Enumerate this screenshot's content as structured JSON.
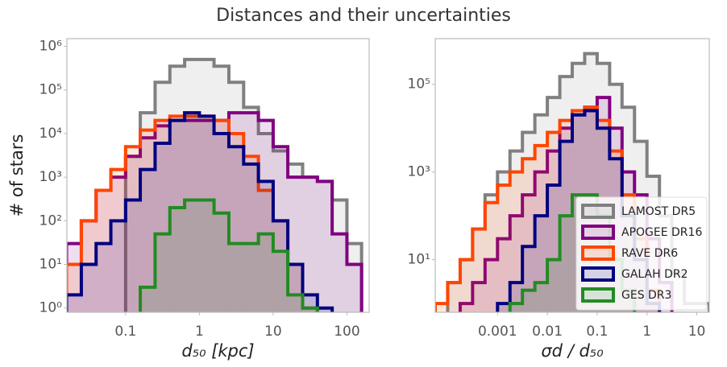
{
  "title": "Distances and their uncertainties",
  "chart_data": [
    {
      "type": "histogram",
      "xlabel": "d₅₀ [kpc]",
      "ylabel": "# of stars",
      "xlog": true,
      "ylog": true,
      "xlim": [
        0.016,
        200
      ],
      "ylim": [
        0.8,
        1500000
      ],
      "xticks": [
        0.1,
        1,
        10,
        100
      ],
      "yticks": [
        {
          "value": 1,
          "label": "10⁰"
        },
        {
          "value": 10,
          "label": "10¹"
        },
        {
          "value": 100,
          "label": "10²"
        },
        {
          "value": 1000,
          "label": "10³"
        },
        {
          "value": 10000,
          "label": "10⁴"
        },
        {
          "value": 100000,
          "label": "10⁵"
        },
        {
          "value": 1000000,
          "label": "10⁶"
        }
      ],
      "bins": [
        0.0158,
        0.0251,
        0.0398,
        0.0631,
        0.1,
        0.158,
        0.251,
        0.398,
        0.631,
        1,
        1.58,
        2.51,
        3.98,
        6.31,
        10,
        15.8,
        25.1,
        39.8,
        63.1,
        100,
        158
      ],
      "series": [
        {
          "name": "LAMOST DR5",
          "color": "#808080",
          "values": [
            null,
            null,
            null,
            null,
            3000,
            30000,
            150000,
            350000,
            500000,
            500000,
            350000,
            150000,
            40000,
            10000,
            4000,
            2000,
            1000,
            800,
            300,
            30
          ]
        },
        {
          "name": "APOGEE DR16",
          "color": "#800080",
          "values": [
            30,
            100,
            500,
            1000,
            3000,
            8000,
            15000,
            20000,
            20000,
            20000,
            20000,
            30000,
            30000,
            20000,
            5000,
            1000,
            1000,
            800,
            50,
            10
          ]
        },
        {
          "name": "RAVE DR6",
          "color": "#ff4500",
          "values": [
            10,
            100,
            500,
            1500,
            5000,
            12000,
            20000,
            25000,
            25000,
            25000,
            20000,
            10000,
            3000,
            500,
            100,
            10,
            1,
            null,
            null,
            null
          ]
        },
        {
          "name": "GALAH DR2",
          "color": "#000080",
          "values": [
            2,
            10,
            30,
            100,
            300,
            1500,
            6000,
            20000,
            30000,
            25000,
            10000,
            5000,
            2000,
            800,
            100,
            10,
            2,
            1,
            null,
            null
          ]
        },
        {
          "name": "GES DR3",
          "color": "#228b22",
          "values": [
            null,
            null,
            null,
            null,
            null,
            3,
            50,
            200,
            300,
            300,
            150,
            30,
            30,
            50,
            20,
            2,
            1,
            null,
            null,
            null
          ]
        }
      ]
    },
    {
      "type": "histogram",
      "xlabel": "σd / d₅₀",
      "xlog": true,
      "ylog": true,
      "xlim": [
        5.62e-05,
        17.8
      ],
      "ylim": [
        0.63,
        1100000
      ],
      "xticks": [
        0.001,
        0.01,
        0.1,
        1,
        10
      ],
      "yticks": [
        {
          "value": 10,
          "label": "10¹"
        },
        {
          "value": 1000,
          "label": "10³"
        },
        {
          "value": 100000,
          "label": "10⁵"
        }
      ],
      "legend": "lower right",
      "bins": [
        5.62e-05,
        0.0001,
        0.000178,
        0.000316,
        0.000562,
        0.001,
        0.00178,
        0.00316,
        0.00562,
        0.01,
        0.0178,
        0.0316,
        0.0562,
        0.1,
        0.178,
        0.316,
        0.562,
        1,
        1.78,
        3.16,
        5.62,
        10,
        17.8
      ],
      "series": [
        {
          "name": "LAMOST DR5",
          "color": "#808080",
          "values": [
            null,
            3,
            10,
            50,
            300,
            1000,
            3000,
            8000,
            20000,
            50000,
            150000,
            300000,
            500000,
            300000,
            100000,
            30000,
            5000,
            800,
            100,
            5,
            1,
            1
          ]
        },
        {
          "name": "APOGEE DR16",
          "color": "#800080",
          "values": [
            null,
            null,
            1,
            3,
            10,
            30,
            100,
            300,
            1000,
            3000,
            10000,
            20000,
            30000,
            50000,
            10000,
            1000,
            300,
            30,
            3,
            null,
            null,
            null
          ]
        },
        {
          "name": "RAVE DR6",
          "color": "#ff4500",
          "values": [
            1,
            3,
            10,
            50,
            200,
            500,
            1000,
            2000,
            4000,
            8000,
            15000,
            25000,
            30000,
            15000,
            3000,
            300,
            30,
            2,
            null,
            null,
            null,
            null
          ]
        },
        {
          "name": "GALAH DR2",
          "color": "#000080",
          "values": [
            null,
            null,
            null,
            null,
            null,
            1,
            3,
            20,
            100,
            500,
            5000,
            20000,
            25000,
            10000,
            2000,
            100,
            10,
            1,
            null,
            null,
            null,
            null
          ]
        },
        {
          "name": "GES DR3",
          "color": "#228b22",
          "values": [
            null,
            null,
            null,
            null,
            null,
            null,
            1,
            2,
            3,
            10,
            100,
            300,
            300,
            100,
            10,
            2,
            null,
            null,
            null,
            null,
            null,
            null
          ]
        }
      ]
    }
  ]
}
